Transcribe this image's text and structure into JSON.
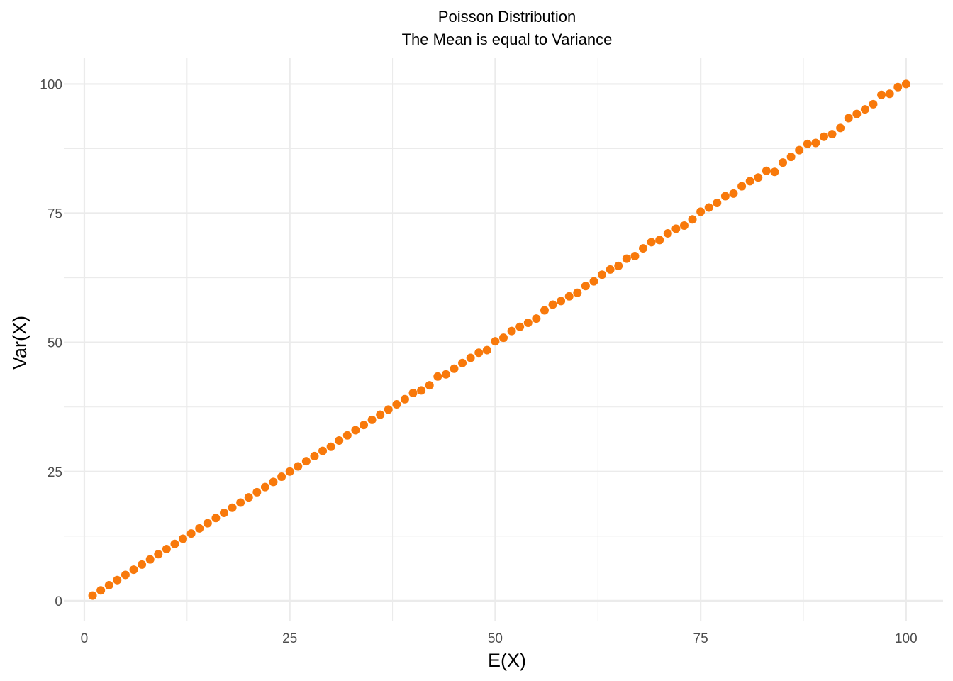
{
  "chart_data": {
    "type": "scatter",
    "title": "Poisson Distribution",
    "subtitle": "The Mean is equal to Variance",
    "xlabel": "E(X)",
    "ylabel": "Var(X)",
    "xlim": [
      -2.5,
      104.5
    ],
    "ylim": [
      -4,
      105
    ],
    "x_ticks": [
      0,
      25,
      50,
      75,
      100
    ],
    "y_ticks": [
      0,
      25,
      50,
      75,
      100
    ],
    "x_tick_labels": [
      "0",
      "25",
      "50",
      "75",
      "100"
    ],
    "y_tick_labels": [
      "0",
      "25",
      "50",
      "75",
      "100"
    ],
    "grid": true,
    "legend": "none",
    "point_color": "#f8790b",
    "series": [
      {
        "x": [
          1,
          2,
          3,
          4,
          5,
          6,
          7,
          8,
          9,
          10,
          11,
          12,
          13,
          14,
          15,
          16,
          17,
          18,
          19,
          20,
          21,
          22,
          23,
          24,
          25,
          26,
          27,
          28,
          29,
          30,
          31,
          32,
          33,
          34,
          35,
          36,
          37,
          38,
          39,
          40,
          41,
          42,
          43,
          44,
          45,
          46,
          47,
          48,
          49,
          50,
          51,
          52,
          53,
          54,
          55,
          56,
          57,
          58,
          59,
          60,
          61,
          62,
          63,
          64,
          65,
          66,
          67,
          68,
          69,
          70,
          71,
          72,
          73,
          74,
          75,
          76,
          77,
          78,
          79,
          80,
          81,
          82,
          83,
          84,
          85,
          86,
          87,
          88,
          89,
          90,
          91,
          92,
          93,
          94,
          95,
          96,
          97,
          98,
          99,
          100
        ],
        "y": [
          1,
          2,
          3,
          4,
          5,
          6,
          7,
          8,
          9,
          10,
          11,
          12,
          13,
          14,
          15,
          16,
          17,
          18,
          19,
          20,
          21,
          22,
          23,
          24,
          25,
          26,
          27,
          28,
          29,
          29.8,
          31,
          32,
          33,
          34,
          35,
          36,
          37,
          38,
          39,
          40.2,
          40.7,
          41.7,
          43.4,
          43.8,
          44.9,
          46,
          47,
          48,
          48.5,
          50.2,
          50.9,
          52.2,
          53,
          53.8,
          54.6,
          56.2,
          57.3,
          58,
          58.9,
          59.6,
          60.9,
          61.8,
          63.1,
          64.1,
          64.8,
          66.2,
          66.7,
          68.2,
          69.4,
          69.8,
          71.1,
          72,
          72.6,
          73.8,
          75.3,
          76.1,
          77,
          78.3,
          78.8,
          80.2,
          81.2,
          81.9,
          83.2,
          83,
          84.8,
          85.9,
          87.2,
          88.4,
          88.6,
          89.8,
          90.3,
          91.5,
          93.4,
          94.2,
          95.1,
          96.1,
          97.9,
          98.1,
          99.4,
          100
        ]
      }
    ]
  }
}
